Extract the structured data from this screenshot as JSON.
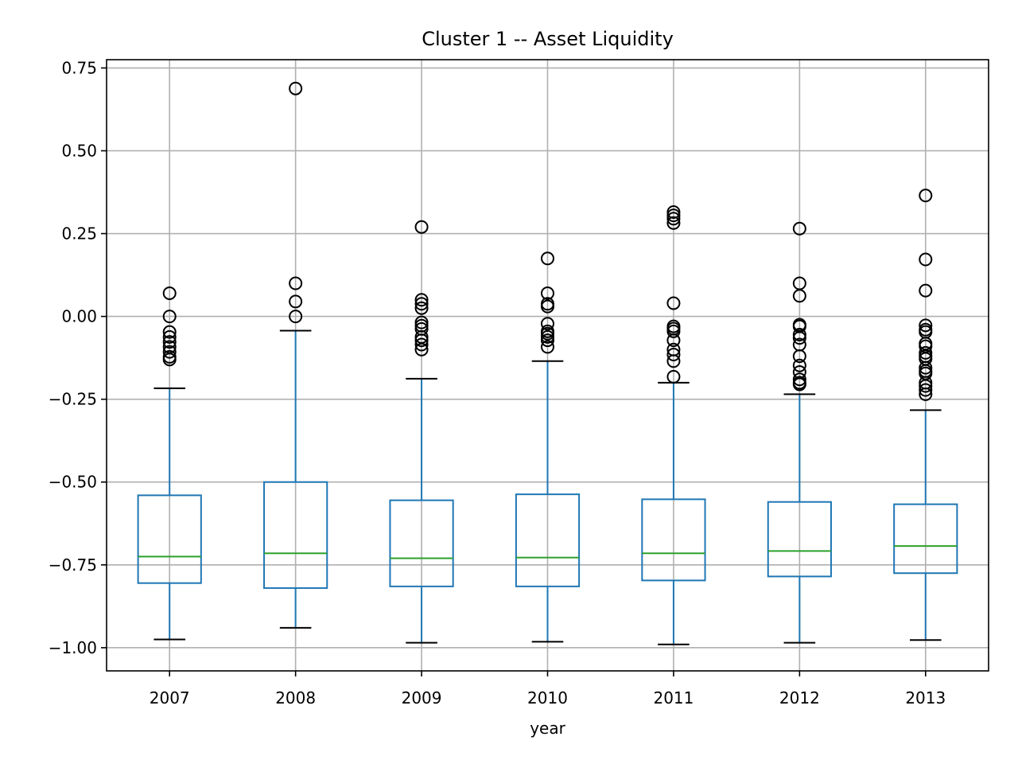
{
  "chart_data": {
    "type": "box",
    "title": "Cluster 1 -- Asset Liquidity",
    "xlabel": "year",
    "ylabel": "",
    "ylim": [
      -1.07,
      0.775
    ],
    "yticks": [
      -1.0,
      -0.75,
      -0.5,
      -0.25,
      0.0,
      0.25,
      0.5,
      0.75
    ],
    "ytick_labels": [
      "−1.00",
      "−0.75",
      "−0.50",
      "−0.25",
      "0.00",
      "0.25",
      "0.50",
      "0.75"
    ],
    "grid": true,
    "categories": [
      "2007",
      "2008",
      "2009",
      "2010",
      "2011",
      "2012",
      "2013"
    ],
    "boxes": [
      {
        "year": "2007",
        "whisker_low": -0.975,
        "q1": -0.805,
        "median": -0.725,
        "q3": -0.54,
        "whisker_high": -0.217,
        "fliers": [
          0.07,
          0.0,
          -0.047,
          -0.062,
          -0.077,
          -0.092,
          -0.107,
          -0.122,
          -0.13
        ]
      },
      {
        "year": "2008",
        "whisker_low": -0.94,
        "q1": -0.82,
        "median": -0.715,
        "q3": -0.5,
        "whisker_high": -0.043,
        "fliers": [
          0.688,
          0.1,
          0.045,
          0.0
        ]
      },
      {
        "year": "2009",
        "whisker_low": -0.985,
        "q1": -0.815,
        "median": -0.73,
        "q3": -0.555,
        "whisker_high": -0.188,
        "fliers": [
          0.27,
          0.05,
          0.038,
          0.025,
          -0.018,
          -0.028,
          -0.038,
          -0.062,
          -0.072,
          -0.085,
          -0.1
        ]
      },
      {
        "year": "2010",
        "whisker_low": -0.982,
        "q1": -0.815,
        "median": -0.728,
        "q3": -0.537,
        "whisker_high": -0.135,
        "fliers": [
          0.175,
          0.07,
          0.038,
          0.03,
          -0.022,
          -0.045,
          -0.052,
          -0.062,
          -0.072,
          -0.092
        ]
      },
      {
        "year": "2011",
        "whisker_low": -0.99,
        "q1": -0.797,
        "median": -0.715,
        "q3": -0.552,
        "whisker_high": -0.2,
        "fliers": [
          0.315,
          0.305,
          0.295,
          0.282,
          0.04,
          -0.03,
          -0.037,
          -0.045,
          -0.072,
          -0.1,
          -0.115,
          -0.135,
          -0.182
        ]
      },
      {
        "year": "2012",
        "whisker_low": -0.985,
        "q1": -0.785,
        "median": -0.708,
        "q3": -0.56,
        "whisker_high": -0.235,
        "fliers": [
          0.265,
          0.1,
          0.062,
          -0.025,
          -0.03,
          -0.055,
          -0.065,
          -0.085,
          -0.12,
          -0.148,
          -0.168,
          -0.19,
          -0.2,
          -0.205
        ]
      },
      {
        "year": "2013",
        "whisker_low": -0.977,
        "q1": -0.775,
        "median": -0.693,
        "q3": -0.567,
        "whisker_high": -0.283,
        "fliers": [
          0.365,
          0.172,
          0.078,
          -0.027,
          -0.04,
          -0.047,
          -0.082,
          -0.09,
          -0.11,
          -0.12,
          -0.128,
          -0.155,
          -0.165,
          -0.172,
          -0.2,
          -0.21,
          -0.222,
          -0.235
        ]
      }
    ]
  }
}
